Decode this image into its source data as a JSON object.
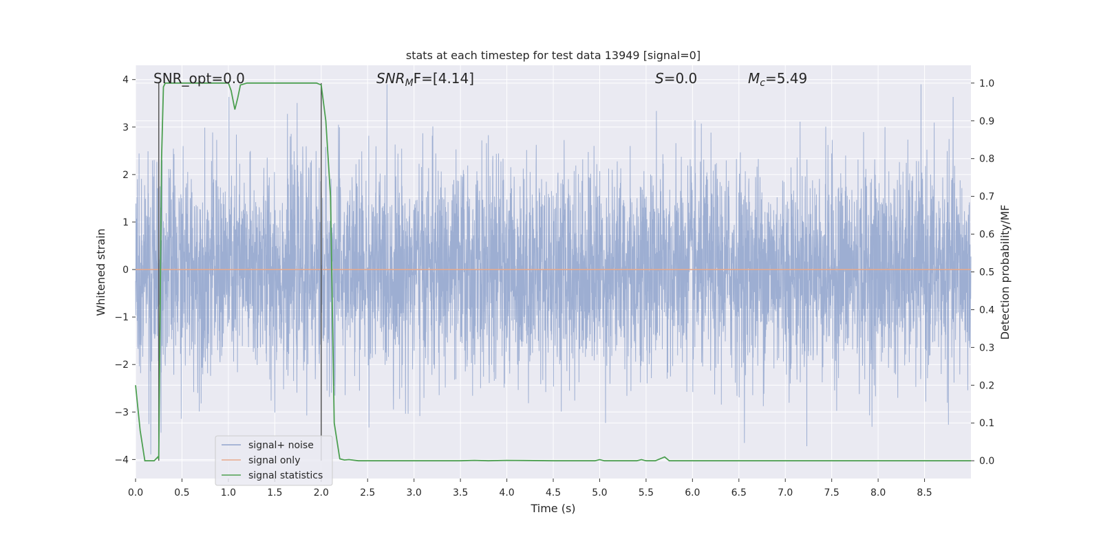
{
  "chart_data": {
    "type": "line",
    "title": "stats at each timestep for test data 13949 [signal=0]",
    "xlabel": "Time (s)",
    "ylabel": "Whitened strain",
    "y2label": "Detection probability/MF",
    "xlim": [
      0.0,
      9.0
    ],
    "ylim": [
      -4.4,
      4.3
    ],
    "y2lim": [
      -0.047,
      1.047
    ],
    "xticks": [
      "0.0",
      "0.5",
      "1.0",
      "1.5",
      "2.0",
      "2.5",
      "3.0",
      "3.5",
      "4.0",
      "4.5",
      "5.0",
      "5.5",
      "6.0",
      "6.5",
      "7.0",
      "7.5",
      "8.0",
      "8.5"
    ],
    "yticks": [
      "4",
      "3",
      "2",
      "1",
      "0",
      "−1",
      "−2",
      "−3",
      "−4"
    ],
    "y2ticks": [
      "1.0",
      "0.9",
      "0.8",
      "0.7",
      "0.6",
      "0.5",
      "0.4",
      "0.3",
      "0.2",
      "0.1",
      "0.0"
    ],
    "annotations": {
      "snr_opt": "SNR_opt=0.0",
      "snr_mf_prefix": "SNR",
      "snr_mf_sub": "M",
      "snr_mf_suffix": "F=[4.14]",
      "s_label": "S",
      "s_value": "=0.0",
      "mc_label": "M",
      "mc_sub": "c",
      "mc_value": "=5.49"
    },
    "legend": {
      "position": "lower-left",
      "entries": [
        "signal+ noise",
        "signal only",
        "signal statistics"
      ]
    },
    "colors": {
      "noise": "#8fa3cc",
      "signal_only": "#e8a88a",
      "statistics": "#4c9f50",
      "vline": "#555555",
      "background": "#eaeaf2",
      "grid": "#ffffff"
    },
    "series": [
      {
        "name": "signal+ noise",
        "description": "whitened noise, approx. gaussian, sigma ~1.1",
        "sigma": 1.1,
        "samples": 4500
      },
      {
        "name": "signal only",
        "values_constant": 0.0
      },
      {
        "name": "signal statistics",
        "axis": "right",
        "points": [
          [
            0.0,
            0.2
          ],
          [
            0.05,
            0.08
          ],
          [
            0.1,
            0.0
          ],
          [
            0.15,
            0.0
          ],
          [
            0.2,
            0.0
          ],
          [
            0.24,
            0.01
          ],
          [
            0.25,
            0.005
          ],
          [
            0.28,
            0.8
          ],
          [
            0.3,
            0.99
          ],
          [
            0.32,
            1.0
          ],
          [
            0.5,
            1.0
          ],
          [
            0.8,
            1.0
          ],
          [
            1.0,
            1.0
          ],
          [
            1.03,
            0.98
          ],
          [
            1.07,
            0.93
          ],
          [
            1.1,
            0.96
          ],
          [
            1.13,
            0.995
          ],
          [
            1.2,
            1.0
          ],
          [
            1.5,
            1.0
          ],
          [
            1.8,
            1.0
          ],
          [
            1.95,
            1.0
          ],
          [
            2.0,
            0.995
          ],
          [
            2.05,
            0.9
          ],
          [
            2.1,
            0.7
          ],
          [
            2.14,
            0.1
          ],
          [
            2.2,
            0.005
          ],
          [
            2.25,
            0.002
          ],
          [
            2.3,
            0.003
          ],
          [
            2.4,
            0.0
          ],
          [
            3.0,
            0.0
          ],
          [
            3.5,
            0.0
          ],
          [
            3.65,
            0.001
          ],
          [
            3.8,
            0.0
          ],
          [
            4.0,
            0.001
          ],
          [
            4.5,
            0.0
          ],
          [
            4.95,
            0.0
          ],
          [
            5.0,
            0.003
          ],
          [
            5.05,
            0.0
          ],
          [
            5.4,
            0.0
          ],
          [
            5.45,
            0.003
          ],
          [
            5.5,
            0.0
          ],
          [
            5.6,
            0.0
          ],
          [
            5.7,
            0.01
          ],
          [
            5.75,
            0.0
          ],
          [
            6.0,
            0.0
          ],
          [
            7.0,
            0.0
          ],
          [
            8.0,
            0.0
          ],
          [
            9.0,
            0.0
          ]
        ]
      }
    ],
    "vlines": [
      0.25,
      2.0
    ]
  }
}
